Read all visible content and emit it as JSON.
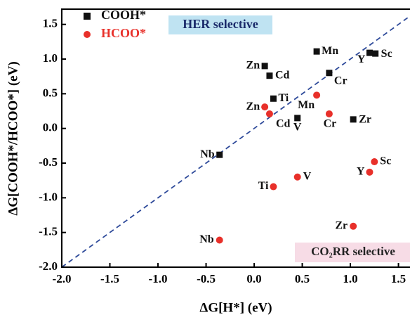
{
  "chart_data": {
    "type": "scatter",
    "x_label": "ΔG[H*] (eV)",
    "y_label": "ΔG[COOH*/HCOO*] (eV)",
    "annotations": [
      "HER selective",
      "CO₂RR selective"
    ],
    "xlim": [
      -2.0,
      1.62
    ],
    "ylim": [
      -2.0,
      1.72
    ],
    "xticks": [
      {
        "value": -2.0,
        "label": "-2.0"
      },
      -1.5,
      {
        "value": -1.0,
        "label": "-1.0"
      },
      -0.5,
      {
        "value": 0.0,
        "label": "0.0"
      },
      0.5,
      {
        "value": 1.0,
        "label": "1.0"
      },
      1.5
    ],
    "yticks": [
      {
        "value": -2.0,
        "label": "-2.0"
      },
      -1.5,
      {
        "value": -1.0,
        "label": "-1.0"
      },
      -0.5,
      {
        "value": 0.0,
        "label": "0.0"
      },
      0.5,
      {
        "value": 1.0,
        "label": "1.0"
      },
      1.5
    ],
    "series": [
      {
        "name": "COOH*",
        "color": "#111111",
        "marker": "square",
        "labels": [
          "Zn",
          "Cd",
          "Ti",
          "Mn",
          "Cr",
          "Sc",
          "Y",
          "V",
          "Zr",
          "Nb"
        ],
        "x": [
          0.11,
          0.16,
          0.2,
          0.65,
          0.78,
          1.26,
          1.2,
          0.45,
          1.03,
          -0.36
        ],
        "values": [
          0.9,
          0.76,
          0.43,
          1.11,
          0.8,
          1.08,
          1.09,
          0.15,
          0.13,
          -0.38
        ]
      },
      {
        "name": "HCOO*",
        "color": "#e8302a",
        "marker": "circle",
        "labels": [
          "Mn",
          "Zn",
          "Cd",
          "Cr",
          "Sc",
          "Y",
          "V",
          "Ti",
          "Zr",
          "Nb"
        ],
        "x": [
          0.65,
          0.11,
          0.16,
          0.78,
          1.25,
          1.2,
          0.45,
          0.2,
          1.03,
          -0.36
        ],
        "values": [
          0.48,
          0.31,
          0.21,
          0.21,
          -0.48,
          -0.63,
          -0.7,
          -0.84,
          -1.41,
          -1.61
        ]
      }
    ]
  }
}
